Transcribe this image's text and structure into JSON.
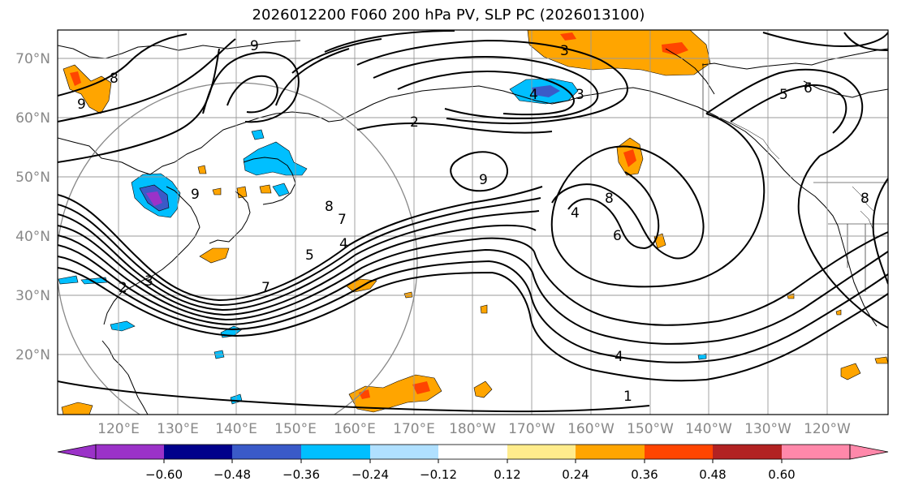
{
  "title": "2026012200 F060 200 hPa PV, SLP PC (2026013100)",
  "lat_labels": [
    "70°N",
    "60°N",
    "50°N",
    "40°N",
    "30°N",
    "20°N"
  ],
  "lon_labels": [
    "120°E",
    "130°E",
    "140°E",
    "150°E",
    "160°E",
    "170°E",
    "180°W",
    "170°W",
    "160°W",
    "150°W",
    "140°W",
    "130°W",
    "120°W"
  ],
  "colorbar": {
    "ticks": [
      "−0.60",
      "−0.48",
      "−0.36",
      "−0.24",
      "−0.12",
      "0.12",
      "0.24",
      "0.36",
      "0.48",
      "0.60"
    ],
    "colors": [
      "#9b32c8",
      "#00008b",
      "#3a5ac8",
      "#00bfff",
      "#b0e0ff",
      "#ffffff",
      "#ffec8c",
      "#ffa500",
      "#ff4500",
      "#b22222",
      "#ff88aa"
    ]
  },
  "contour_labels": [
    "9",
    "8",
    "7",
    "6",
    "5",
    "4",
    "3",
    "2",
    "1"
  ],
  "colors": {
    "anomaly_positive": "#ffa500",
    "anomaly_strong_positive": "#ff4500",
    "anomaly_negative": "#00bfff",
    "anomaly_strong_negative": "#3a5ac8",
    "contour": "#000000",
    "grid": "#999999",
    "axis_label": "#888888"
  }
}
